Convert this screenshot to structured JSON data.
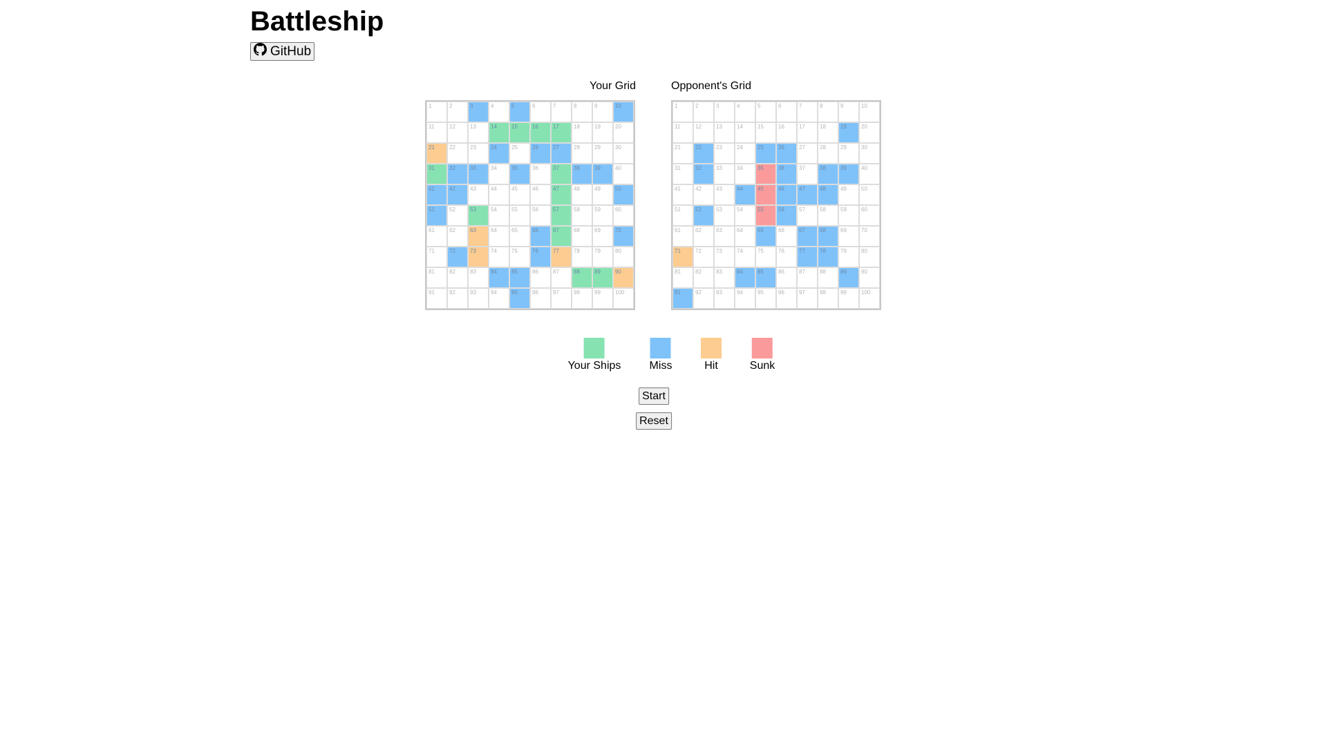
{
  "app": {
    "title": "Battleship",
    "github_label": "GitHub"
  },
  "your_grid": {
    "title": "Your Grid",
    "ships": [
      14,
      15,
      16,
      17,
      31,
      37,
      47,
      53,
      57,
      67,
      88,
      89
    ],
    "misses": [
      3,
      5,
      10,
      24,
      26,
      27,
      32,
      33,
      35,
      38,
      39,
      41,
      42,
      50,
      51,
      66,
      70,
      72,
      76,
      84,
      85,
      95
    ],
    "hits": [
      21,
      63,
      73,
      77,
      90
    ],
    "sunk": []
  },
  "opponent_grid": {
    "title": "Opponent's Grid",
    "ships": [],
    "misses": [
      19,
      22,
      25,
      26,
      32,
      36,
      38,
      39,
      44,
      46,
      47,
      48,
      52,
      56,
      65,
      67,
      68,
      77,
      78,
      84,
      85,
      89,
      91
    ],
    "hits": [
      71
    ],
    "sunk": [
      35,
      45,
      55
    ]
  },
  "legend": [
    {
      "label": "Your Ships",
      "color": "#86e3b1"
    },
    {
      "label": "Miss",
      "color": "#7fc2fa"
    },
    {
      "label": "Hit",
      "color": "#fdcc90"
    },
    {
      "label": "Sunk",
      "color": "#fb9a9b"
    }
  ],
  "controls": {
    "start_label": "Start",
    "reset_label": "Reset"
  }
}
